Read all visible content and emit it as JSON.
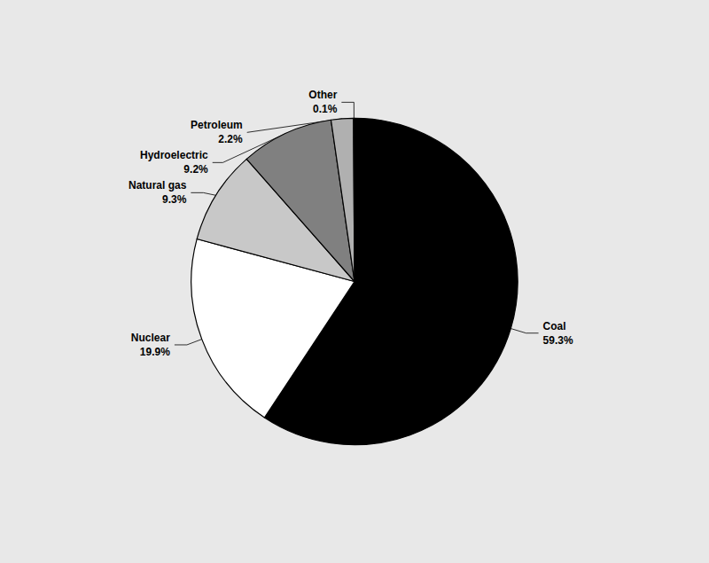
{
  "chart_data": {
    "type": "pie",
    "categories": [
      "Coal",
      "Nuclear",
      "Natural gas",
      "Hydroelectric",
      "Petroleum",
      "Other"
    ],
    "values": [
      59.3,
      19.9,
      9.3,
      9.2,
      2.2,
      0.1
    ],
    "value_labels": [
      "59.3%",
      "19.9%",
      "9.3%",
      "9.2%",
      "2.2%",
      "0.1%"
    ],
    "data_labels": true,
    "colors": [
      "#000000",
      "#ffffff",
      "#c8c8c8",
      "#808080",
      "#b0b0b0",
      "#e8e8c8"
    ]
  }
}
